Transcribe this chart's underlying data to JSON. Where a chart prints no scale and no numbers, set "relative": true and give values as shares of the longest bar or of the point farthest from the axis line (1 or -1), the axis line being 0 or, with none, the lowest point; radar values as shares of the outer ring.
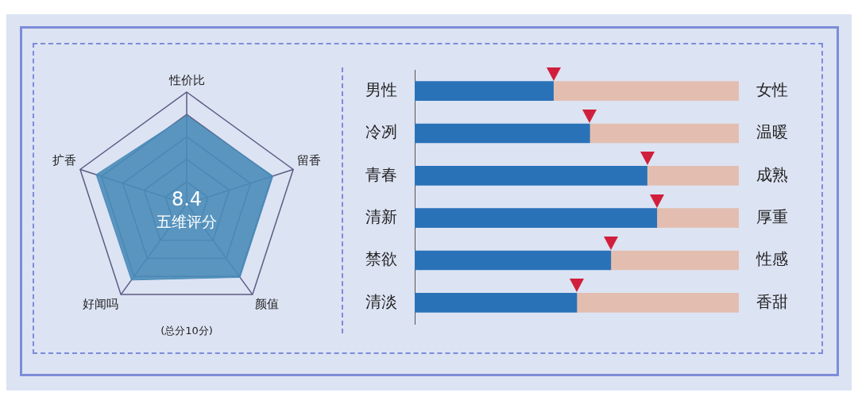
{
  "chart_data": [
    {
      "type": "radar",
      "relative": true,
      "categories": [
        "性价比",
        "留香",
        "颜值",
        "好闻吗",
        "扩香"
      ],
      "series": [
        {
          "color": "#4a8cb9",
          "values": [
            0.79,
            0.81,
            0.81,
            0.84,
            0.85
          ]
        }
      ],
      "annotations": [
        "8.4",
        "五维评分",
        "(总分10分)"
      ]
    },
    {
      "type": "bar",
      "orientation": "horizontal",
      "relative": true,
      "stacked": true,
      "categories": [
        "男性",
        "冷冽",
        "青春",
        "清新",
        "禁欲",
        "清淡"
      ],
      "y2_categories": [
        "女性",
        "温暖",
        "成熟",
        "厚重",
        "性感",
        "香甜"
      ],
      "series": [
        {
          "color": "#2a72b8",
          "values": [
            0.428,
            0.54,
            0.717,
            0.747,
            0.605,
            0.5
          ]
        },
        {
          "color": "#e3beb0",
          "values": [
            0.572,
            0.46,
            0.283,
            0.253,
            0.395,
            0.5
          ]
        }
      ]
    }
  ]
}
